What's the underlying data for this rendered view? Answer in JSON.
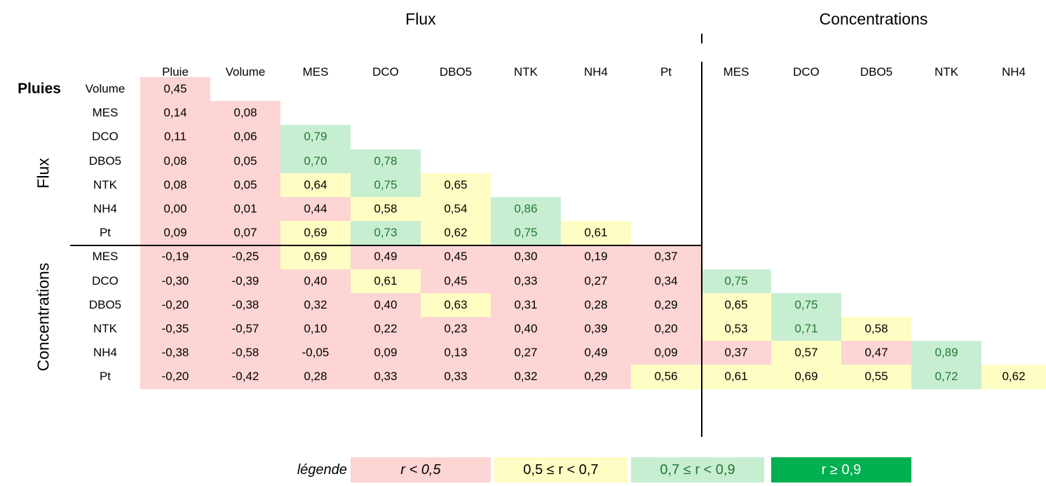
{
  "table": {
    "column_groups": [
      {
        "label": "Flux",
        "columns": [
          "Pluie",
          "Volume",
          "MES",
          "DCO",
          "DBO5",
          "NTK",
          "NH4",
          "Pt"
        ]
      },
      {
        "label": "Concentrations",
        "columns": [
          "MES",
          "DCO",
          "DBO5",
          "NTK",
          "NH4"
        ]
      }
    ],
    "row_groups": [
      {
        "label": "Pluies",
        "rows": [
          {
            "label": "Volume",
            "values": [
              "0,45"
            ]
          }
        ]
      },
      {
        "label": "Flux",
        "rows": [
          {
            "label": "MES",
            "values": [
              "0,14",
              "0,08"
            ]
          },
          {
            "label": "DCO",
            "values": [
              "0,11",
              "0,06",
              "0,79"
            ]
          },
          {
            "label": "DBO5",
            "values": [
              "0,08",
              "0,05",
              "0,70",
              "0,78"
            ]
          },
          {
            "label": "NTK",
            "values": [
              "0,08",
              "0,05",
              "0,64",
              "0,75",
              "0,65"
            ]
          },
          {
            "label": "NH4",
            "values": [
              "0,00",
              "0,01",
              "0,44",
              "0,58",
              "0,54",
              "0,86"
            ]
          },
          {
            "label": "Pt",
            "values": [
              "0,09",
              "0,07",
              "0,69",
              "0,73",
              "0,62",
              "0,75",
              "0,61"
            ]
          }
        ]
      },
      {
        "label": "Concentrations",
        "rows": [
          {
            "label": "MES",
            "values": [
              "-0,19",
              "-0,25",
              "0,69",
              "0,49",
              "0,45",
              "0,30",
              "0,19",
              "0,37"
            ]
          },
          {
            "label": "DCO",
            "values": [
              "-0,30",
              "-0,39",
              "0,40",
              "0,61",
              "0,45",
              "0,33",
              "0,27",
              "0,34",
              "0,75"
            ]
          },
          {
            "label": "DBO5",
            "values": [
              "-0,20",
              "-0,38",
              "0,32",
              "0,40",
              "0,63",
              "0,31",
              "0,28",
              "0,29",
              "0,65",
              "0,75"
            ]
          },
          {
            "label": "NTK",
            "values": [
              "-0,35",
              "-0,57",
              "0,10",
              "0,22",
              "0,23",
              "0,40",
              "0,39",
              "0,20",
              "0,53",
              "0,71",
              "0,58"
            ]
          },
          {
            "label": "NH4",
            "values": [
              "-0,38",
              "-0,58",
              "-0,05",
              "0,09",
              "0,13",
              "0,27",
              "0,49",
              "0,09",
              "0,37",
              "0,57",
              "0,47",
              "0,89"
            ]
          },
          {
            "label": "Pt",
            "values": [
              "-0,20",
              "-0,42",
              "0,28",
              "0,33",
              "0,33",
              "0,32",
              "0,29",
              "0,56",
              "0,61",
              "0,69",
              "0,55",
              "0,72",
              "0,62"
            ]
          }
        ]
      }
    ],
    "legend": {
      "title": "légende",
      "items": [
        {
          "label": "r < 0,5",
          "fill": "#fcd5d4",
          "color": "#000000",
          "italic": true
        },
        {
          "label": "0,5 ≤ r < 0,7",
          "min": 0.5,
          "fill": "#fefdc3",
          "color": "#000000"
        },
        {
          "label": "0,7 ≤ r <  0,9",
          "min": 0.7,
          "fill": "#c8eed2",
          "color": "#1f7a2e"
        },
        {
          "label": "r ≥ 0,9",
          "min": 0.9,
          "fill": "#00b050",
          "color": "#ffffff"
        }
      ]
    }
  }
}
